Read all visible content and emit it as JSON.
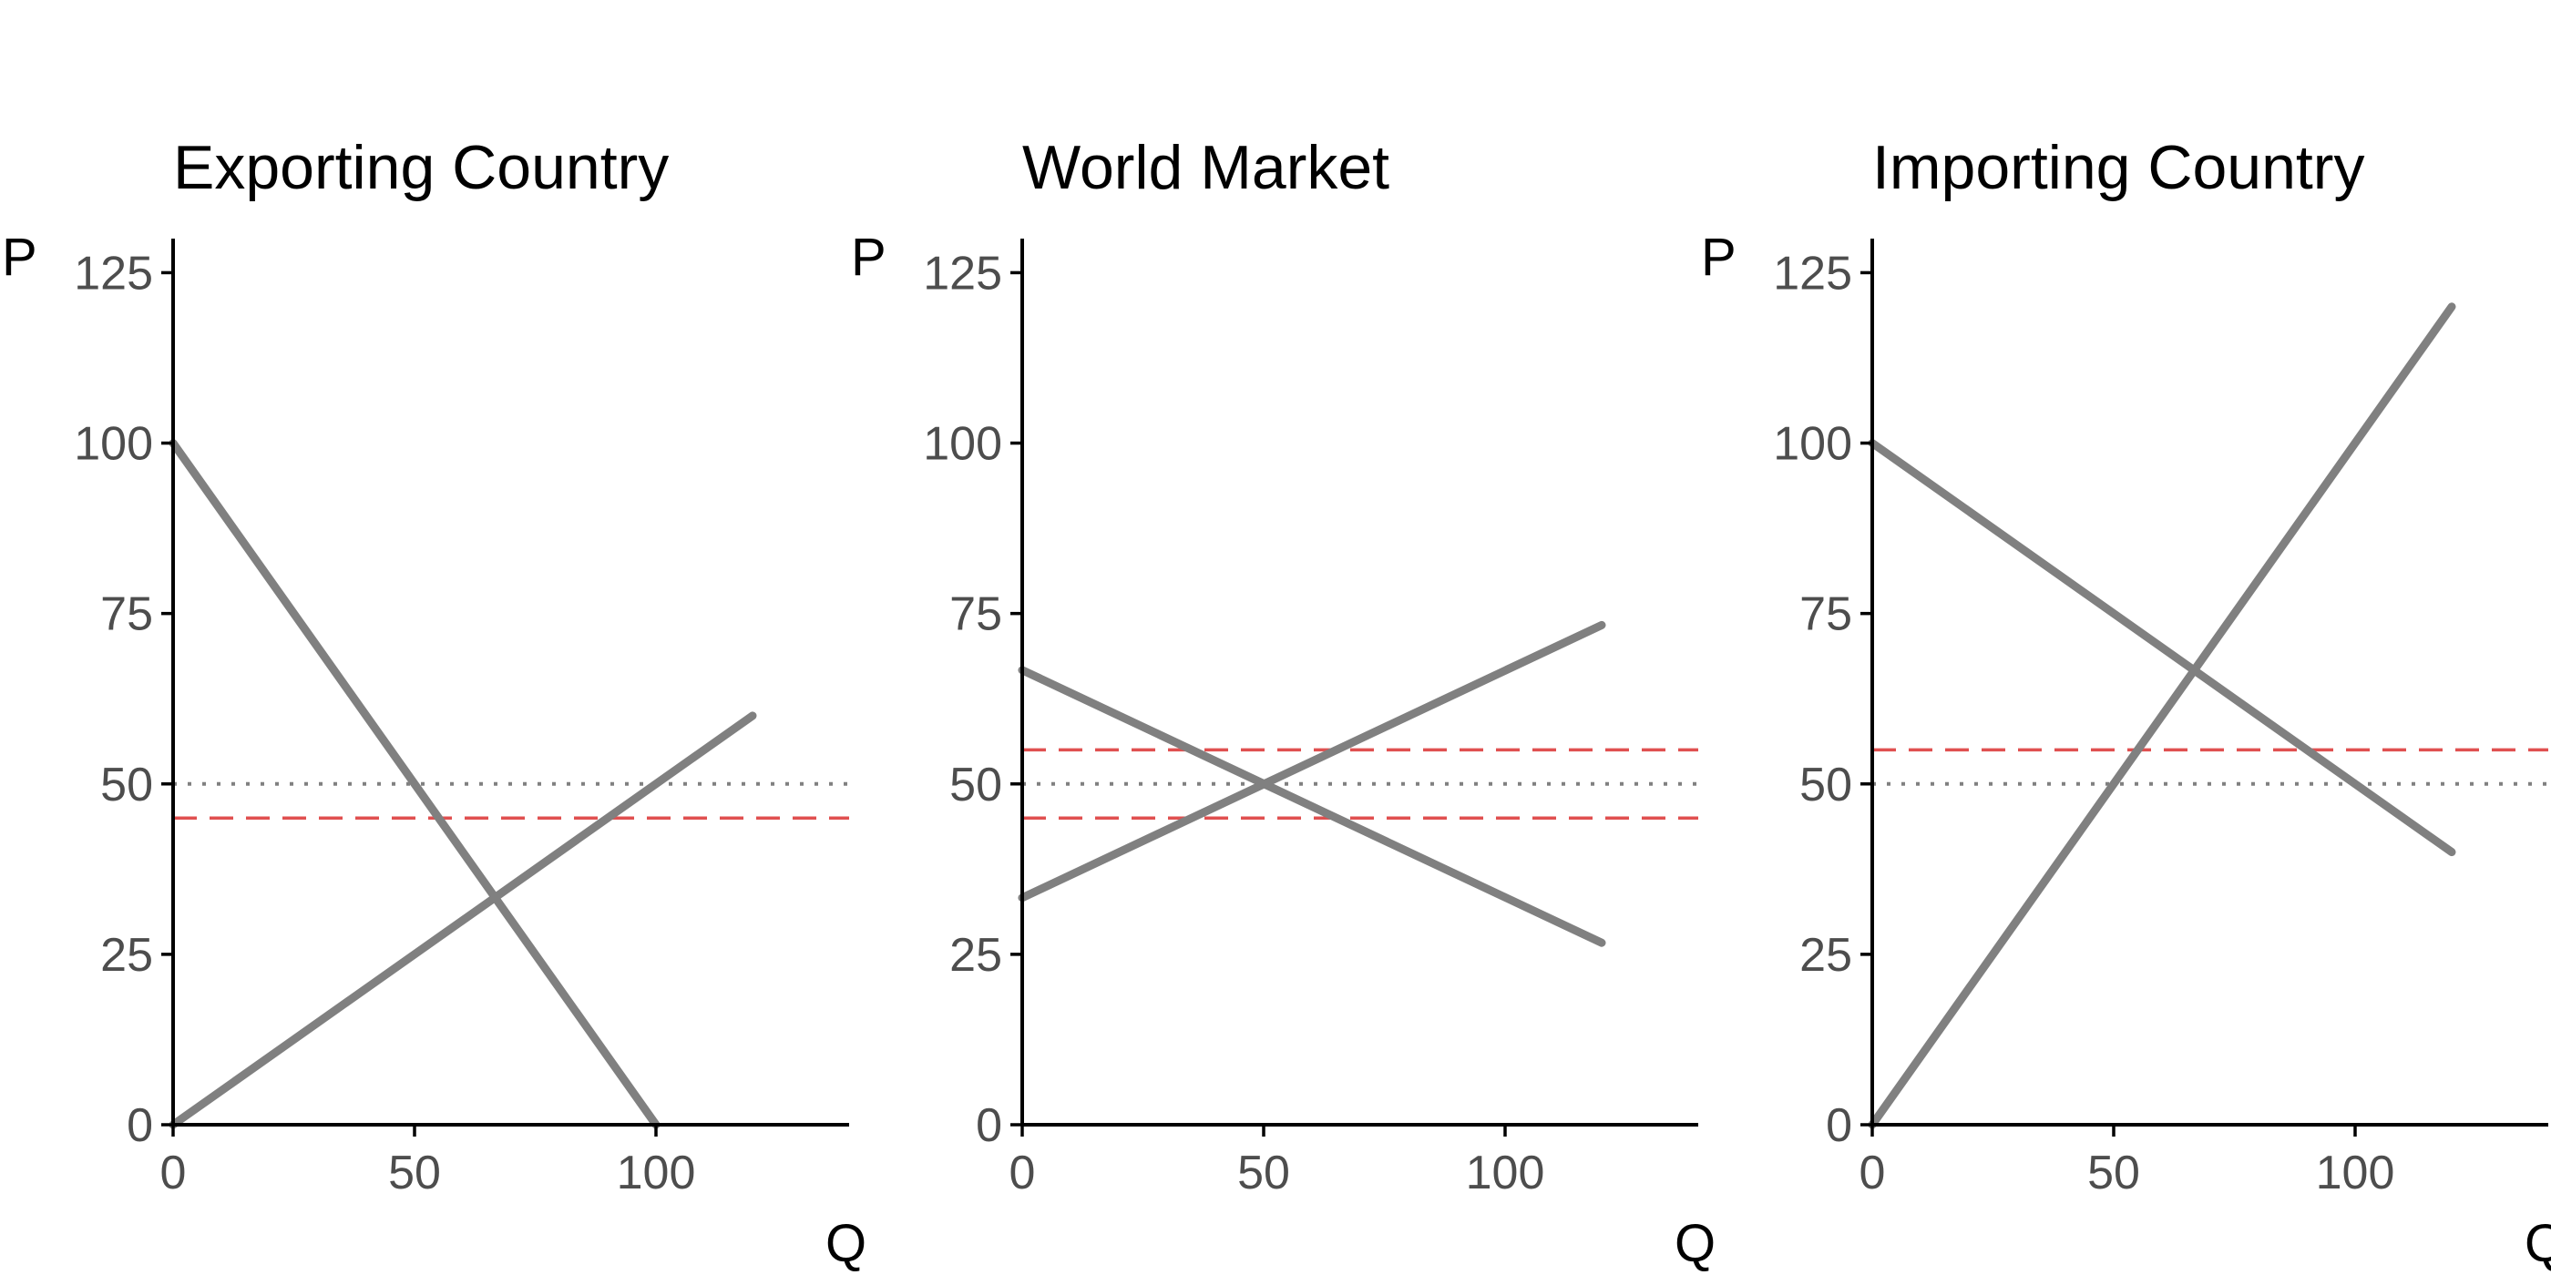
{
  "chart_data": [
    {
      "type": "line",
      "title": "Exporting Country",
      "xlabel": "Q",
      "ylabel": "P",
      "xlim": [
        0,
        140
      ],
      "ylim": [
        0,
        130
      ],
      "x_ticks": [
        0,
        50,
        100
      ],
      "y_ticks": [
        0,
        25,
        50,
        75,
        100,
        125
      ],
      "grid": false,
      "series": [
        {
          "role": "demand",
          "style": "solid",
          "color": "#808080",
          "points": [
            [
              0,
              100
            ],
            [
              100,
              0
            ]
          ]
        },
        {
          "role": "supply",
          "style": "solid",
          "color": "#808080",
          "points": [
            [
              0,
              0
            ],
            [
              120,
              60
            ]
          ]
        }
      ],
      "hlines": [
        {
          "y": 50,
          "style": "dotted",
          "color": "#808080"
        },
        {
          "y": 45,
          "style": "dashed",
          "color": "#e05050"
        }
      ]
    },
    {
      "type": "line",
      "title": "World Market",
      "xlabel": "Q",
      "ylabel": "P",
      "xlim": [
        0,
        140
      ],
      "ylim": [
        0,
        130
      ],
      "x_ticks": [
        0,
        50,
        100
      ],
      "y_ticks": [
        0,
        25,
        50,
        75,
        100,
        125
      ],
      "grid": false,
      "series": [
        {
          "role": "demand",
          "style": "solid",
          "color": "#808080",
          "points": [
            [
              0,
              66.7
            ],
            [
              120,
              26.7
            ]
          ]
        },
        {
          "role": "supply",
          "style": "solid",
          "color": "#808080",
          "points": [
            [
              0,
              33.3
            ],
            [
              120,
              73.3
            ]
          ]
        }
      ],
      "hlines": [
        {
          "y": 55,
          "style": "dashed",
          "color": "#e05050"
        },
        {
          "y": 50,
          "style": "dotted",
          "color": "#808080"
        },
        {
          "y": 45,
          "style": "dashed",
          "color": "#e05050"
        }
      ]
    },
    {
      "type": "line",
      "title": "Importing Country",
      "xlabel": "Q",
      "ylabel": "P",
      "xlim": [
        0,
        140
      ],
      "ylim": [
        0,
        130
      ],
      "x_ticks": [
        0,
        50,
        100
      ],
      "y_ticks": [
        0,
        25,
        50,
        75,
        100,
        125
      ],
      "grid": false,
      "series": [
        {
          "role": "demand",
          "style": "solid",
          "color": "#808080",
          "points": [
            [
              0,
              100
            ],
            [
              120,
              40
            ]
          ]
        },
        {
          "role": "supply",
          "style": "solid",
          "color": "#808080",
          "points": [
            [
              0,
              0
            ],
            [
              120,
              120
            ]
          ]
        }
      ],
      "hlines": [
        {
          "y": 55,
          "style": "dashed",
          "color": "#e05050"
        },
        {
          "y": 50,
          "style": "dotted",
          "color": "#808080"
        }
      ]
    }
  ]
}
